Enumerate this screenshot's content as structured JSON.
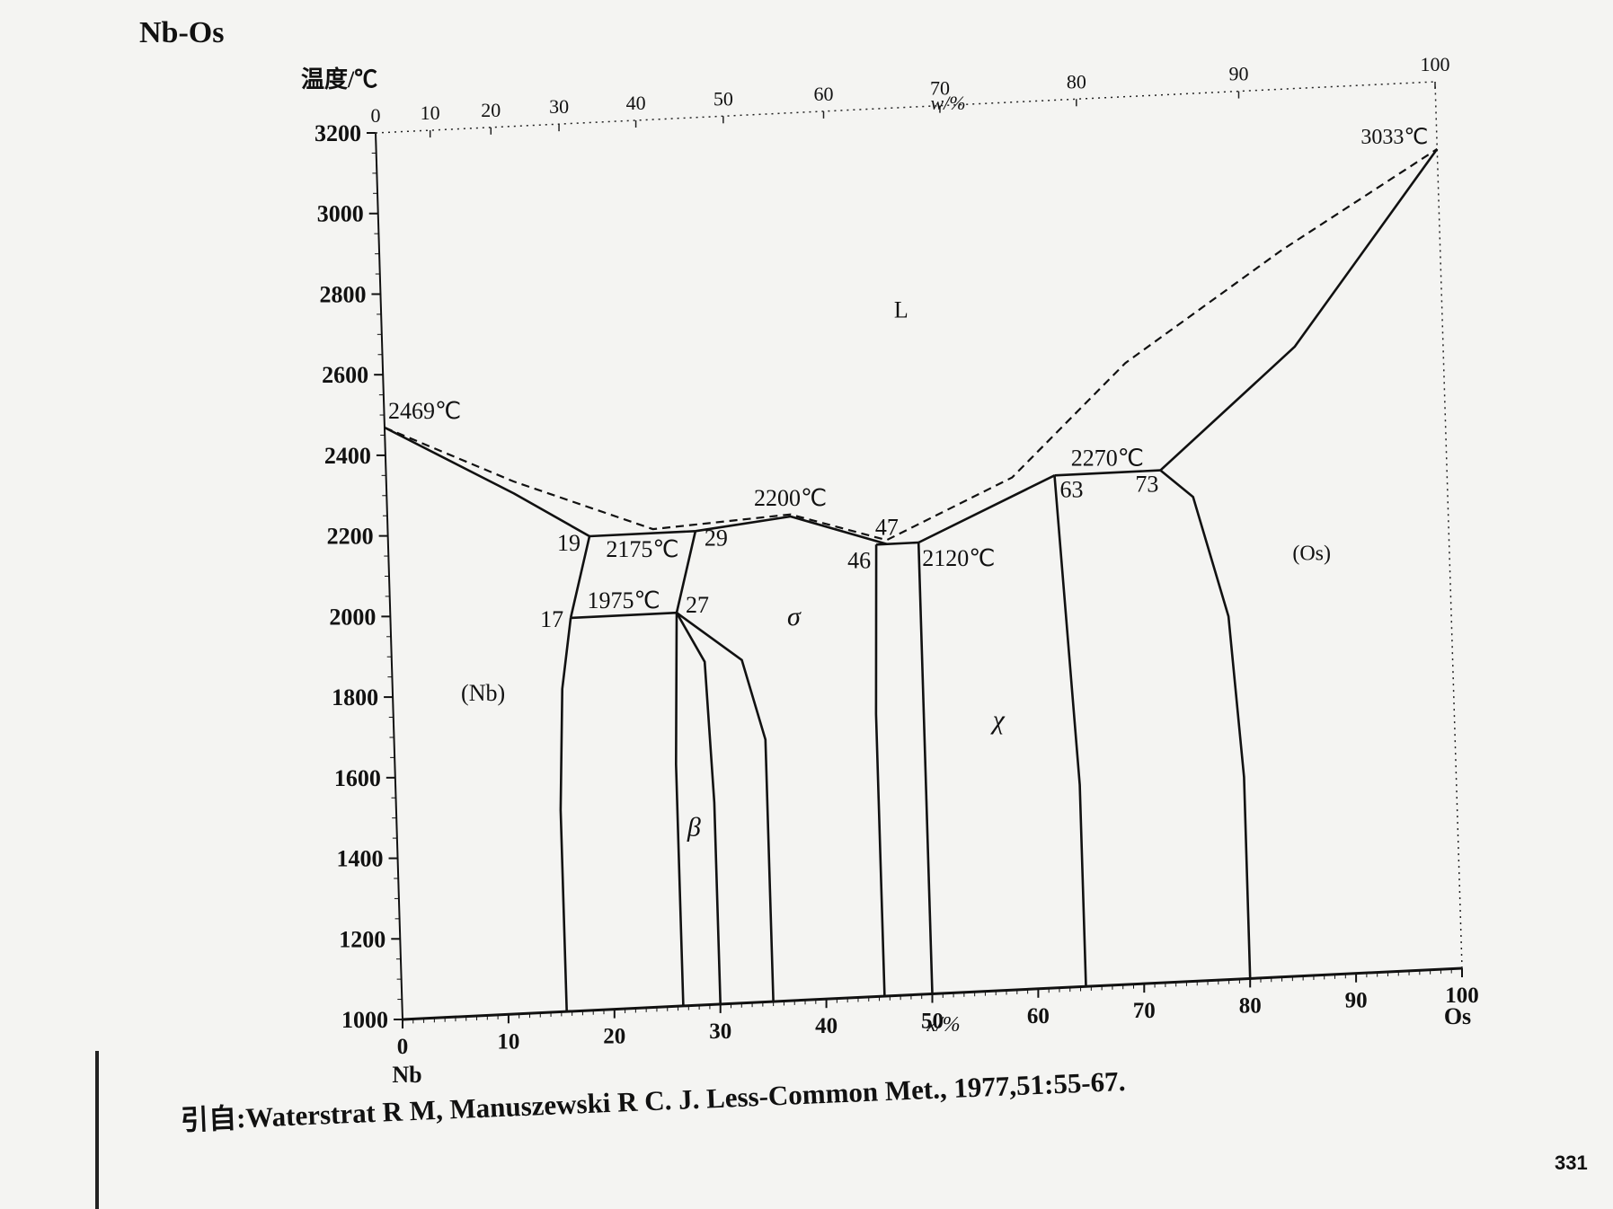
{
  "chart_data": {
    "type": "phase-diagram",
    "title": "Nb-Os",
    "ylabel": "温度/℃",
    "xlabel_bottom": "x/%",
    "xlabel_top": "w/%",
    "xlim": [
      0,
      100
    ],
    "ylim": [
      1000,
      3200
    ],
    "y_ticks": [
      "1000",
      "1200",
      "1400",
      "1600",
      "1800",
      "2000",
      "2200",
      "2400",
      "2600",
      "2800",
      "3000",
      "3200"
    ],
    "x_ticks_bottom": [
      "0",
      "10",
      "20",
      "30",
      "40",
      "50",
      "60",
      "70",
      "80",
      "90",
      "100"
    ],
    "x_ticks_top": [
      "0",
      "10",
      "20",
      "30",
      "40",
      "50",
      "60",
      "70",
      "80",
      "90",
      "100"
    ],
    "left_element": "Nb",
    "right_element": "Os",
    "grid": false,
    "phases": [
      "L",
      "(Nb)",
      "β",
      "σ",
      "χ",
      "(Os)"
    ],
    "points": [
      {
        "label": "2469℃",
        "x": 0,
        "y": 2469
      },
      {
        "label": "19",
        "x": 19,
        "y": 2175
      },
      {
        "label": "29",
        "x": 29,
        "y": 2175
      },
      {
        "label": "2175℃",
        "x": 24,
        "y": 2175
      },
      {
        "label": "17",
        "x": 17,
        "y": 1975
      },
      {
        "label": "27",
        "x": 27,
        "y": 1975
      },
      {
        "label": "1975℃",
        "x": 22,
        "y": 1975
      },
      {
        "label": "2200℃",
        "x": 38,
        "y": 2200
      },
      {
        "label": "47",
        "x": 47,
        "y": 2120
      },
      {
        "label": "46",
        "x": 46,
        "y": 2120
      },
      {
        "label": "2120℃",
        "x": 50,
        "y": 2120
      },
      {
        "label": "2270℃",
        "x": 68,
        "y": 2270
      },
      {
        "label": "63",
        "x": 63,
        "y": 2270
      },
      {
        "label": "73",
        "x": 73,
        "y": 2270
      },
      {
        "label": "3033℃",
        "x": 100,
        "y": 3033
      }
    ],
    "solid_lines": [
      {
        "name": "liquidus-nb",
        "points": [
          [
            0,
            2469
          ],
          [
            12,
            2290
          ],
          [
            19,
            2175
          ]
        ]
      },
      {
        "name": "eutectic-2175",
        "points": [
          [
            19,
            2175
          ],
          [
            29,
            2175
          ]
        ]
      },
      {
        "name": "eutectoid-1975",
        "points": [
          [
            17,
            1975
          ],
          [
            27,
            1975
          ]
        ]
      },
      {
        "name": "nb-solvus-high",
        "points": [
          [
            17,
            1975
          ],
          [
            19,
            2175
          ]
        ]
      },
      {
        "name": "beta-right-high",
        "points": [
          [
            27,
            1975
          ],
          [
            29,
            2175
          ]
        ]
      },
      {
        "name": "sigma-liquidus",
        "points": [
          [
            29,
            2175
          ],
          [
            38,
            2200
          ],
          [
            47,
            2120
          ]
        ]
      },
      {
        "name": "peritectic-2120",
        "points": [
          [
            46,
            2120
          ],
          [
            50,
            2120
          ]
        ]
      },
      {
        "name": "chi-liquidus",
        "points": [
          [
            50,
            2120
          ],
          [
            63,
            2270
          ]
        ]
      },
      {
        "name": "peritectic-2270",
        "points": [
          [
            63,
            2270
          ],
          [
            73,
            2270
          ]
        ]
      },
      {
        "name": "os-liquidus",
        "points": [
          [
            73,
            2270
          ],
          [
            86,
            2560
          ],
          [
            100,
            3033
          ]
        ]
      },
      {
        "name": "nb-solvus",
        "points": [
          [
            17,
            1975
          ],
          [
            16,
            1800
          ],
          [
            15.5,
            1500
          ],
          [
            15.5,
            1000
          ]
        ]
      },
      {
        "name": "beta-left",
        "points": [
          [
            27,
            1975
          ],
          [
            26.5,
            1600
          ],
          [
            26.5,
            1000
          ]
        ]
      },
      {
        "name": "beta-right",
        "points": [
          [
            27,
            1975
          ],
          [
            29.5,
            1850
          ],
          [
            30,
            1500
          ],
          [
            30,
            1000
          ]
        ]
      },
      {
        "name": "sigma-left",
        "points": [
          [
            27,
            1975
          ],
          [
            33,
            1850
          ],
          [
            35,
            1650
          ],
          [
            35,
            1000
          ]
        ]
      },
      {
        "name": "sigma-right",
        "points": [
          [
            46,
            2120
          ],
          [
            45.5,
            1700
          ],
          [
            45.5,
            1000
          ]
        ]
      },
      {
        "name": "chi-left",
        "points": [
          [
            50,
            2120
          ],
          [
            50,
            1000
          ]
        ]
      },
      {
        "name": "chi-right",
        "points": [
          [
            63,
            2270
          ],
          [
            64.5,
            1500
          ],
          [
            64.5,
            1000
          ]
        ]
      },
      {
        "name": "os-solvus",
        "points": [
          [
            73,
            2270
          ],
          [
            76,
            2200
          ],
          [
            79,
            1900
          ],
          [
            80,
            1500
          ],
          [
            80,
            1000
          ]
        ]
      }
    ],
    "dashed_lines": [
      {
        "name": "solidus-estimate",
        "points": [
          [
            0,
            2469
          ],
          [
            12,
            2320
          ],
          [
            25,
            2185
          ],
          [
            38,
            2205
          ],
          [
            47,
            2130
          ],
          [
            59,
            2270
          ],
          [
            70,
            2540
          ],
          [
            85,
            2800
          ],
          [
            100,
            3033
          ]
        ]
      }
    ]
  },
  "source_text": "引自:Waterstrat R M, Manuszewski R C. J. Less-Common Met., 1977,51:55-67.",
  "page_number": "331"
}
